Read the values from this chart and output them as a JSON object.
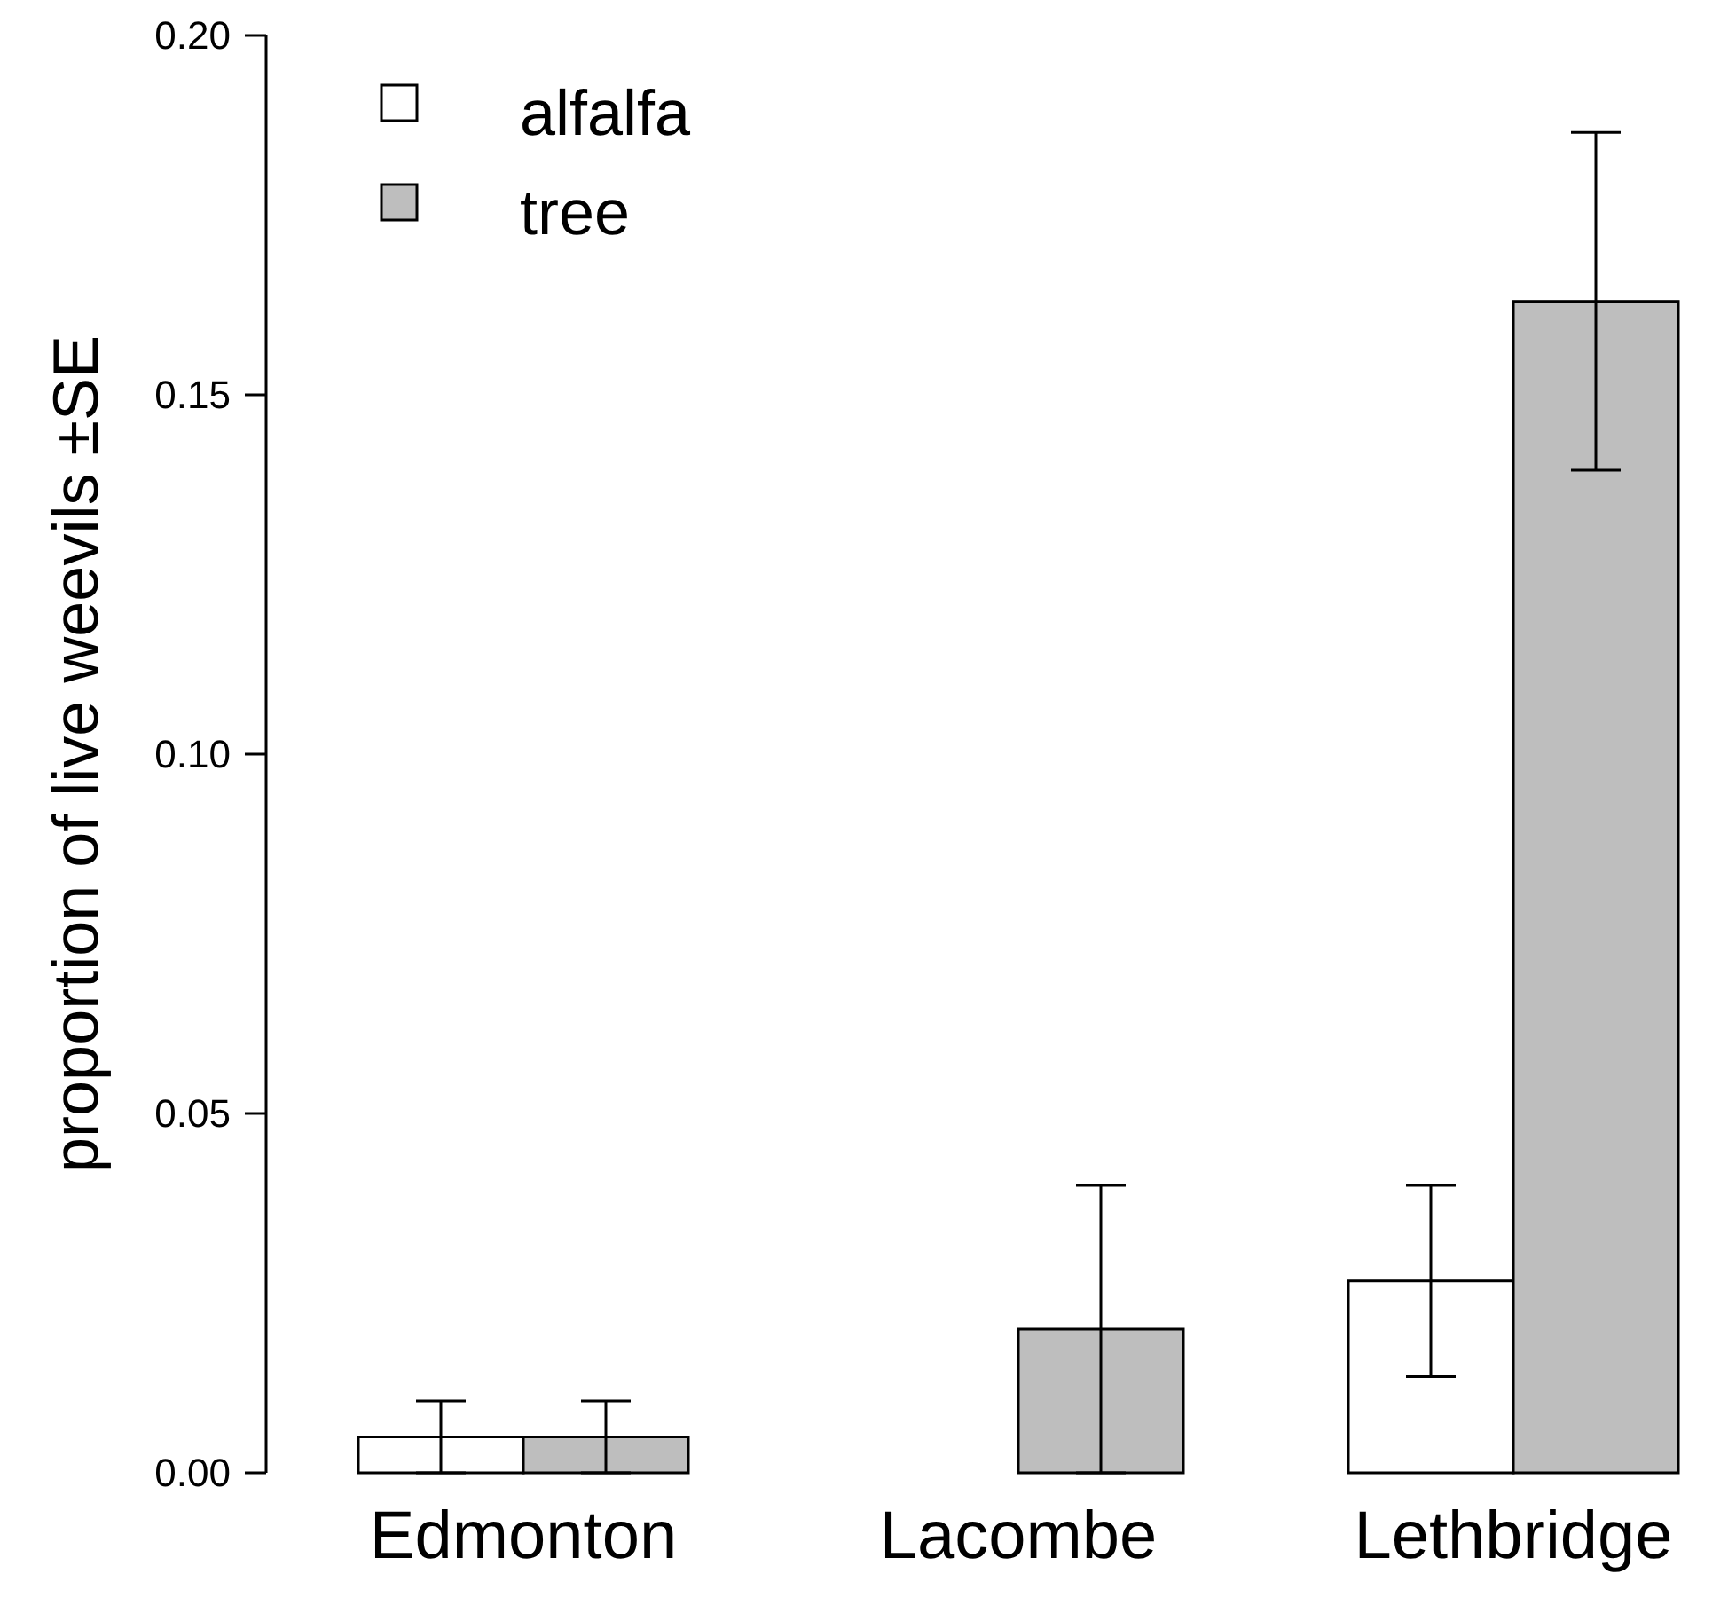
{
  "chart_data": {
    "type": "bar",
    "ylabel": "proportion of live weevils ±SE",
    "categories": [
      "Edmonton",
      "Lacombe",
      "Lethbridge"
    ],
    "series": [
      {
        "name": "alfalfa",
        "color": "#ffffff",
        "values": [
          0.005,
          0,
          0.0267
        ],
        "errors": [
          0.005,
          null,
          0.0133
        ]
      },
      {
        "name": "tree",
        "color": "#bebebe",
        "values": [
          0.005,
          0.02,
          0.163
        ],
        "errors": [
          0.005,
          0.02,
          0.0235
        ]
      }
    ],
    "ylim": [
      0,
      0.2
    ],
    "yticks": [
      {
        "value": 0,
        "label": "0.00"
      },
      {
        "value": 0.05,
        "label": "0.05"
      },
      {
        "value": 0.1,
        "label": "0.10"
      },
      {
        "value": 0.15,
        "label": "0.15"
      },
      {
        "value": 0.2,
        "label": "0.20"
      }
    ],
    "legend": "top left",
    "grid": false
  }
}
